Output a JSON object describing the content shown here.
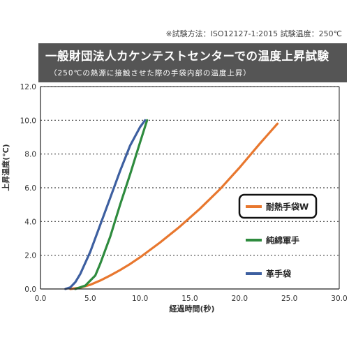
{
  "note": "※試験方法：ISO12127-1:2015 試験温度：250℃",
  "banner": {
    "title": "一般財団法人カケンテストセンターでの温度上昇試験",
    "subtitle": "（250℃の熱源に接触させた際の手袋内部の温度上昇）"
  },
  "chart_data": {
    "type": "line",
    "xlabel": "経過時間(秒)",
    "ylabel": "上昇温度(℃)",
    "xlim": [
      0,
      30
    ],
    "ylim": [
      0,
      12
    ],
    "x_ticks": [
      "0.0",
      "5.0",
      "10.0",
      "15.0",
      "20.0",
      "25.0",
      "30.0"
    ],
    "y_ticks": [
      "0.0",
      "2.0",
      "4.0",
      "6.0",
      "8.0",
      "10.0",
      "12.0"
    ],
    "grid": "horizontal dotted",
    "legend_placement": "right",
    "series": [
      {
        "name": "耐熱手袋W",
        "color": "#e8772e",
        "highlighted": true,
        "x": [
          3.0,
          4.0,
          5.0,
          6.0,
          7.0,
          8.0,
          9.0,
          10.0,
          12.0,
          14.0,
          16.0,
          18.0,
          20.0,
          22.0,
          23.8
        ],
        "y": [
          0.0,
          0.08,
          0.25,
          0.5,
          0.8,
          1.12,
          1.48,
          1.88,
          2.75,
          3.7,
          4.75,
          5.9,
          7.2,
          8.6,
          9.8
        ]
      },
      {
        "name": "純綿軍手",
        "color": "#2e8b3e",
        "highlighted": false,
        "x": [
          3.5,
          4.5,
          5.5,
          6.0,
          7.0,
          8.0,
          9.0,
          10.0,
          10.7
        ],
        "y": [
          0.0,
          0.2,
          0.8,
          1.5,
          3.1,
          5.0,
          6.8,
          8.7,
          10.0
        ]
      },
      {
        "name": "革手袋",
        "color": "#3d5fa0",
        "highlighted": false,
        "x": [
          2.5,
          3.0,
          3.5,
          4.0,
          5.0,
          6.0,
          7.0,
          8.0,
          9.0,
          10.0,
          10.5
        ],
        "y": [
          0.0,
          0.1,
          0.4,
          0.9,
          2.2,
          3.8,
          5.4,
          7.0,
          8.5,
          9.6,
          10.0
        ]
      }
    ]
  }
}
